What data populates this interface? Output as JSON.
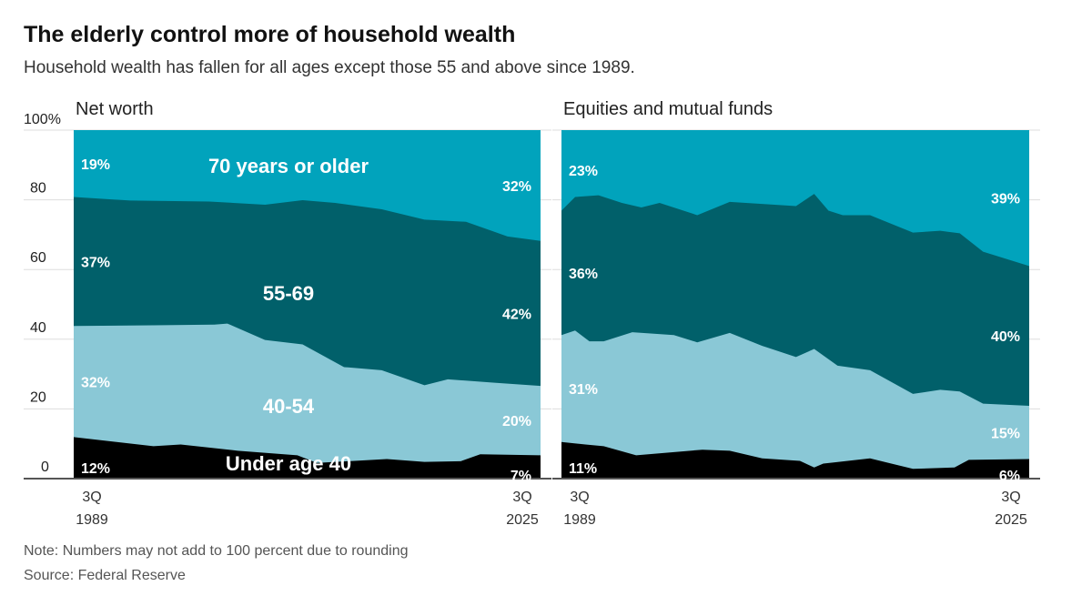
{
  "title": "The elderly control more of household wealth",
  "subtitle": "Household wealth has fallen for all ages except those 55 and above since 1989.",
  "note": "Note: Numbers may not add to 100 percent due to rounding",
  "source": "Source: Federal Reserve",
  "colors": {
    "Under age 40": "#000000",
    "40-54": "#8ac8d6",
    "55-69": "#01606a",
    "70 years or older": "#01a3bc"
  },
  "chart_data": [
    {
      "type": "area",
      "stacked": true,
      "title": "Net worth",
      "ylim": [
        0,
        100
      ],
      "yticks": [
        "0",
        "20",
        "40",
        "60",
        "80",
        "100%"
      ],
      "xticks": [
        [
          "3Q",
          "1989"
        ],
        [
          "3Q",
          "2025"
        ]
      ],
      "xlim": [
        1989.75,
        2025.75
      ],
      "grid": true,
      "series": [
        {
          "name": "Under age 40",
          "start_label": "12%",
          "end_label": "7%",
          "x": [
            1989.75,
            1995.9,
            1998,
            2002.4,
            2007,
            2008.5,
            2013.9,
            2016.8,
            2019.6,
            2021.1,
            2025.75
          ],
          "cumulative_top": [
            11.9,
            9.3,
            9.8,
            8.0,
            6.7,
            4.5,
            5.6,
            4.8,
            5.0,
            7.0,
            6.7
          ]
        },
        {
          "name": "40-54",
          "start_label": "32%",
          "end_label": "20%",
          "x": [
            1989.75,
            1995.9,
            2000.6,
            2001.6,
            2004.5,
            2007.4,
            2010.6,
            2013.5,
            2016.8,
            2018.6,
            2022.2,
            2025.75
          ],
          "cumulative_top": [
            43.8,
            44.0,
            44.2,
            44.5,
            39.8,
            38.5,
            32.0,
            31.1,
            26.8,
            28.5,
            27.5,
            26.6
          ]
        },
        {
          "name": "55-69",
          "start_label": "37%",
          "end_label": "42%",
          "x": [
            1989.75,
            1994.1,
            2000.2,
            2004.5,
            2007.4,
            2009.9,
            2013.5,
            2016.8,
            2020,
            2023.2,
            2025.75
          ],
          "cumulative_top": [
            80.8,
            79.8,
            79.5,
            78.6,
            79.9,
            79.1,
            77.3,
            74.3,
            73.7,
            69.5,
            68.2
          ]
        },
        {
          "name": "70 years or older",
          "start_label": "19%",
          "end_label": "32%",
          "x": [
            1989.75,
            2025.75
          ],
          "cumulative_top": [
            100,
            100
          ]
        }
      ]
    },
    {
      "type": "area",
      "stacked": true,
      "title": "Equities and mutual funds",
      "ylim": [
        0,
        100
      ],
      "xticks": [
        [
          "3Q",
          "1989"
        ],
        [
          "3Q",
          "2025"
        ]
      ],
      "xlim": [
        1989.75,
        2025.75
      ],
      "grid": true,
      "series": [
        {
          "name": "Under age 40",
          "start_label": "11%",
          "end_label": "6%",
          "x": [
            1989.75,
            1991.6,
            1993,
            1995.5,
            2000.6,
            2002.7,
            2005.2,
            2008.1,
            2009.2,
            2009.9,
            2013.5,
            2016.8,
            2020,
            2021.1,
            2025.75
          ],
          "cumulative_top": [
            10.5,
            9.8,
            9.3,
            6.7,
            8.3,
            8.0,
            5.8,
            5.1,
            3.2,
            4.3,
            5.8,
            2.8,
            3.2,
            5.4,
            5.6
          ]
        },
        {
          "name": "40-54",
          "start_label": "31%",
          "end_label": "15%",
          "x": [
            1989.75,
            1990.8,
            1991.9,
            1993,
            1995.2,
            1998.4,
            2000.2,
            2002.7,
            2005.2,
            2007.8,
            2009.2,
            2011,
            2013.5,
            2016.8,
            2018.9,
            2020.4,
            2022.2,
            2025.75
          ],
          "cumulative_top": [
            41.2,
            42.5,
            39.4,
            39.4,
            42.0,
            41.2,
            39.1,
            41.8,
            38.1,
            34.9,
            37.2,
            32.4,
            31.1,
            24.3,
            25.5,
            25.0,
            21.5,
            20.9
          ]
        },
        {
          "name": "55-69",
          "start_label": "36%",
          "end_label": "40%",
          "x": [
            1989.75,
            1990.8,
            1992.6,
            1994.4,
            1995.9,
            1997.3,
            2000.2,
            2002.7,
            2007.8,
            2009.2,
            2010.3,
            2011.4,
            2013.5,
            2016.8,
            2018.9,
            2020.4,
            2022.2,
            2025.75
          ],
          "cumulative_top": [
            76.9,
            80.8,
            81.3,
            79.1,
            77.8,
            79.1,
            75.6,
            79.4,
            78.2,
            81.7,
            76.9,
            75.6,
            75.6,
            70.6,
            71.1,
            70.4,
            65.1,
            61.0
          ]
        },
        {
          "name": "70 years or older",
          "start_label": "23%",
          "end_label": "39%",
          "x": [
            1989.75,
            2025.75
          ],
          "cumulative_top": [
            100,
            100
          ]
        }
      ]
    }
  ]
}
